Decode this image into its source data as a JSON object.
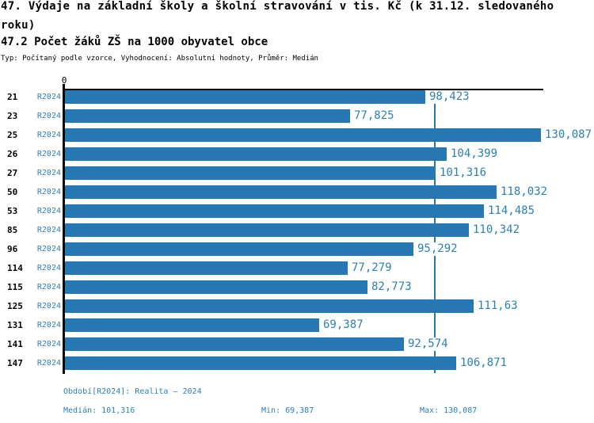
{
  "colors": {
    "bar": "#2677B2",
    "text_blue": "#2E7FB5",
    "axis": "#000000",
    "background": "#FFFFFF"
  },
  "header": {
    "title_line1": "47. Výdaje na základní školy a školní stravování v tis. Kč (k 31.12. sledovaného",
    "title_line2": "roku)",
    "subtitle": "47.2 Počet žáků ZŠ na 1000 obyvatel obce",
    "meta": "Typ: Počítaný podle vzorce, Vyhodnocení: Absolutní hodnoty, Průměr: Medián"
  },
  "axis": {
    "zero_label": "0"
  },
  "chart_data": {
    "type": "bar",
    "orientation": "horizontal",
    "title": "47. Výdaje na základní školy a školní stravování v tis. Kč (k 31.12. sledovaného roku)",
    "subtitle": "47.2 Počet žáků ZŠ na 1000 obyvatel obce",
    "categories": [
      "21",
      "23",
      "25",
      "26",
      "27",
      "50",
      "53",
      "85",
      "96",
      "114",
      "115",
      "125",
      "131",
      "141",
      "147"
    ],
    "series": [
      {
        "name": "R2024",
        "values": [
          98.423,
          77.825,
          130.087,
          104.399,
          101.316,
          118.032,
          114.485,
          110.342,
          95.292,
          77.279,
          82.773,
          111.63,
          69.387,
          92.574,
          106.871
        ]
      }
    ],
    "value_labels": [
      "98,423",
      "77,825",
      "130,087",
      "104,399",
      "101,316",
      "118,032",
      "114,485",
      "110,342",
      "95,292",
      "77,279",
      "82,773",
      "111,63",
      "69,387",
      "92,574",
      "106,871"
    ],
    "xlim": [
      0,
      130.087
    ],
    "xlabel": "",
    "ylabel": "",
    "grid": false,
    "annotations": {
      "median_line_value": 101.316
    },
    "stats": {
      "median": 101.316,
      "min": 69.387,
      "max": 130.087
    }
  },
  "footer": {
    "period_info": "Období[R2024]: Realita – 2024",
    "median": "Medián: 101,316",
    "min": "Min: 69,387",
    "max": "Max: 130,087"
  }
}
